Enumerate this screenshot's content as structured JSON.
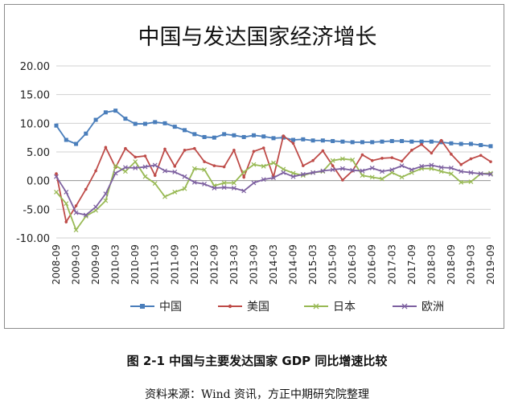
{
  "chart_data": {
    "type": "line",
    "title": "中国与发达国家经济增长",
    "xlabel": "",
    "ylabel": "",
    "ylim": [
      -10,
      20
    ],
    "yticks": [
      "20.00",
      "15.00",
      "10.00",
      "5.00",
      "0.00",
      "-5.00",
      "-10.00"
    ],
    "xticks": [
      "2008-09",
      "2009-03",
      "2009-09",
      "2010-03",
      "2010-09",
      "2011-03",
      "2011-09",
      "2012-03",
      "2012-09",
      "2013-03",
      "2013-09",
      "2014-03",
      "2014-09",
      "2015-03",
      "2015-09",
      "2016-03",
      "2016-09",
      "2017-03",
      "2017-09",
      "2018-03",
      "2018-09",
      "2019-03",
      "2019-09"
    ],
    "x": [
      "2008-09",
      "2008-12",
      "2009-03",
      "2009-06",
      "2009-09",
      "2009-12",
      "2010-03",
      "2010-06",
      "2010-09",
      "2010-12",
      "2011-03",
      "2011-06",
      "2011-09",
      "2011-12",
      "2012-03",
      "2012-06",
      "2012-09",
      "2012-12",
      "2013-03",
      "2013-06",
      "2013-09",
      "2013-12",
      "2014-03",
      "2014-06",
      "2014-09",
      "2014-12",
      "2015-03",
      "2015-06",
      "2015-09",
      "2015-12",
      "2016-03",
      "2016-06",
      "2016-09",
      "2016-12",
      "2017-03",
      "2017-06",
      "2017-09",
      "2017-12",
      "2018-03",
      "2018-06",
      "2018-09",
      "2018-12",
      "2019-03",
      "2019-06",
      "2019-09"
    ],
    "grid": true,
    "legend_position": "bottom",
    "series": [
      {
        "name": "中国",
        "color": "#4a7ebb",
        "marker": "square",
        "values": [
          9.6,
          7.1,
          6.4,
          8.2,
          10.6,
          11.9,
          12.2,
          10.8,
          9.9,
          9.9,
          10.2,
          10.0,
          9.4,
          8.8,
          8.1,
          7.6,
          7.5,
          8.1,
          7.9,
          7.6,
          7.9,
          7.7,
          7.4,
          7.5,
          7.1,
          7.2,
          7.0,
          7.0,
          6.9,
          6.8,
          6.7,
          6.7,
          6.7,
          6.8,
          6.9,
          6.9,
          6.8,
          6.8,
          6.8,
          6.7,
          6.5,
          6.4,
          6.4,
          6.2,
          6.0
        ]
      },
      {
        "name": "美国",
        "color": "#be4b48",
        "marker": "dot",
        "values": [
          1.2,
          -7.2,
          -4.4,
          -1.5,
          1.7,
          5.8,
          2.3,
          5.6,
          4.1,
          4.3,
          0.9,
          5.5,
          2.5,
          5.3,
          5.6,
          3.3,
          2.6,
          2.4,
          5.3,
          0.6,
          5.1,
          5.7,
          0.6,
          7.8,
          6.5,
          2.6,
          3.5,
          5.2,
          2.6,
          0.1,
          1.7,
          4.5,
          3.5,
          3.9,
          4.0,
          3.4,
          5.3,
          6.3,
          4.8,
          7.0,
          4.6,
          2.8,
          3.8,
          4.4,
          3.3
        ]
      },
      {
        "name": "日本",
        "color": "#98b954",
        "marker": "cross",
        "values": [
          -2.0,
          -4.0,
          -8.6,
          -6.2,
          -5.2,
          -3.5,
          2.6,
          1.6,
          3.3,
          0.7,
          -0.5,
          -2.8,
          -2.0,
          -1.4,
          2.1,
          1.9,
          -0.9,
          -0.4,
          -0.4,
          1.5,
          2.8,
          2.5,
          3.1,
          2.0,
          1.3,
          0.9,
          1.4,
          1.6,
          3.5,
          3.8,
          3.6,
          0.9,
          0.6,
          0.3,
          1.4,
          0.6,
          1.4,
          2.1,
          2.1,
          1.6,
          1.2,
          -0.3,
          -0.2,
          1.2,
          1.3
        ]
      },
      {
        "name": "欧洲",
        "color": "#7d60a0",
        "marker": "cross",
        "values": [
          0.7,
          -2.0,
          -5.6,
          -6.0,
          -4.6,
          -2.3,
          1.3,
          2.3,
          2.2,
          2.4,
          2.7,
          1.7,
          1.5,
          0.7,
          -0.3,
          -0.6,
          -1.3,
          -1.2,
          -1.3,
          -1.8,
          -0.4,
          0.2,
          0.5,
          1.4,
          0.7,
          1.1,
          1.4,
          1.7,
          1.9,
          2.1,
          1.8,
          1.7,
          2.2,
          1.6,
          1.9,
          2.6,
          1.9,
          2.5,
          2.7,
          2.3,
          2.2,
          1.6,
          1.4,
          1.2,
          1.1
        ]
      }
    ]
  },
  "caption": "图 2-1  中国与主要发达国家 GDP 同比增速比较",
  "source": "资料来源：Wind 资讯，方正中期研究院整理"
}
